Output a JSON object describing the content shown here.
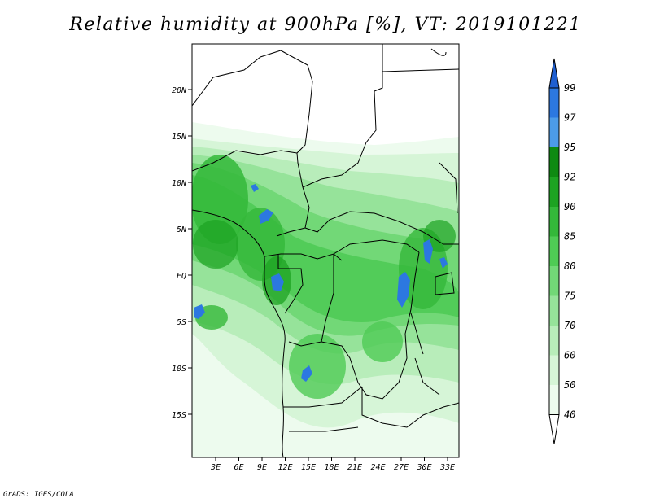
{
  "title": "Relative humidity at 900hPa [%], VT: 2019101221",
  "footer": "GrADS: IGES/COLA",
  "map": {
    "lat_labels": [
      "20N",
      "15N",
      "10N",
      "5N",
      "EQ",
      "5S",
      "10S",
      "15S"
    ],
    "lon_labels": [
      "3E",
      "6E",
      "9E",
      "12E",
      "15E",
      "18E",
      "21E",
      "24E",
      "27E",
      "30E",
      "33E"
    ]
  },
  "colorbar": {
    "labels": [
      "99",
      "97",
      "95",
      "92",
      "90",
      "85",
      "80",
      "75",
      "70",
      "60",
      "50",
      "40"
    ],
    "colors": [
      "#1f5fd0",
      "#2c78e0",
      "#4c9be8",
      "#0e8a12",
      "#1da322",
      "#34b83a",
      "#4fcb55",
      "#72d877",
      "#96e39a",
      "#b8edba",
      "#d6f5d7",
      "#edfbee",
      "#ffffff"
    ]
  }
}
